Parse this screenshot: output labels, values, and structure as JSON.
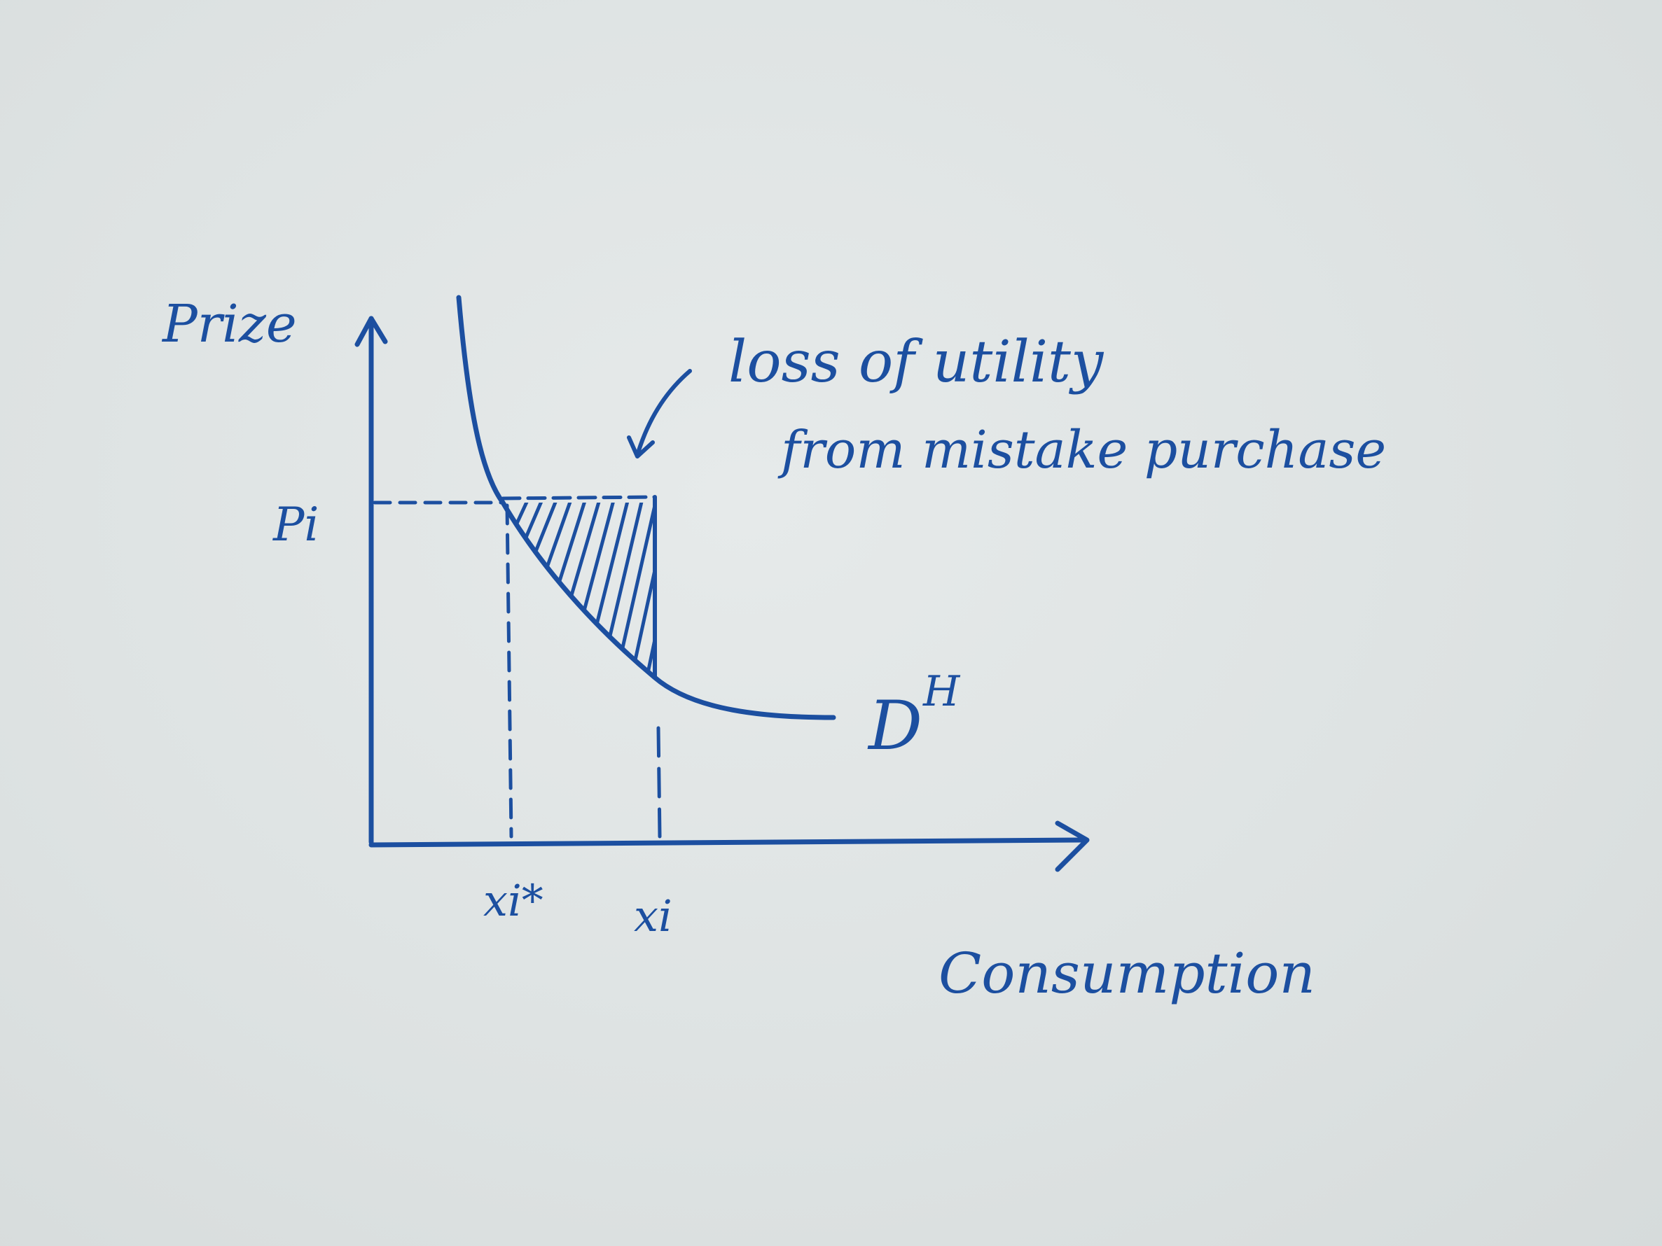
{
  "diagram": {
    "axis_labels": {
      "y": "Prize",
      "x": "Consumption"
    },
    "tick_labels": {
      "price": "Pi",
      "x_star": "xi*",
      "x_i": "xi"
    },
    "curve_label": {
      "base": "D",
      "superscript": "H"
    },
    "annotation": {
      "line1": "loss of utility",
      "line2": "from mistake purchase"
    },
    "ink_color": "#1c4fa0"
  }
}
